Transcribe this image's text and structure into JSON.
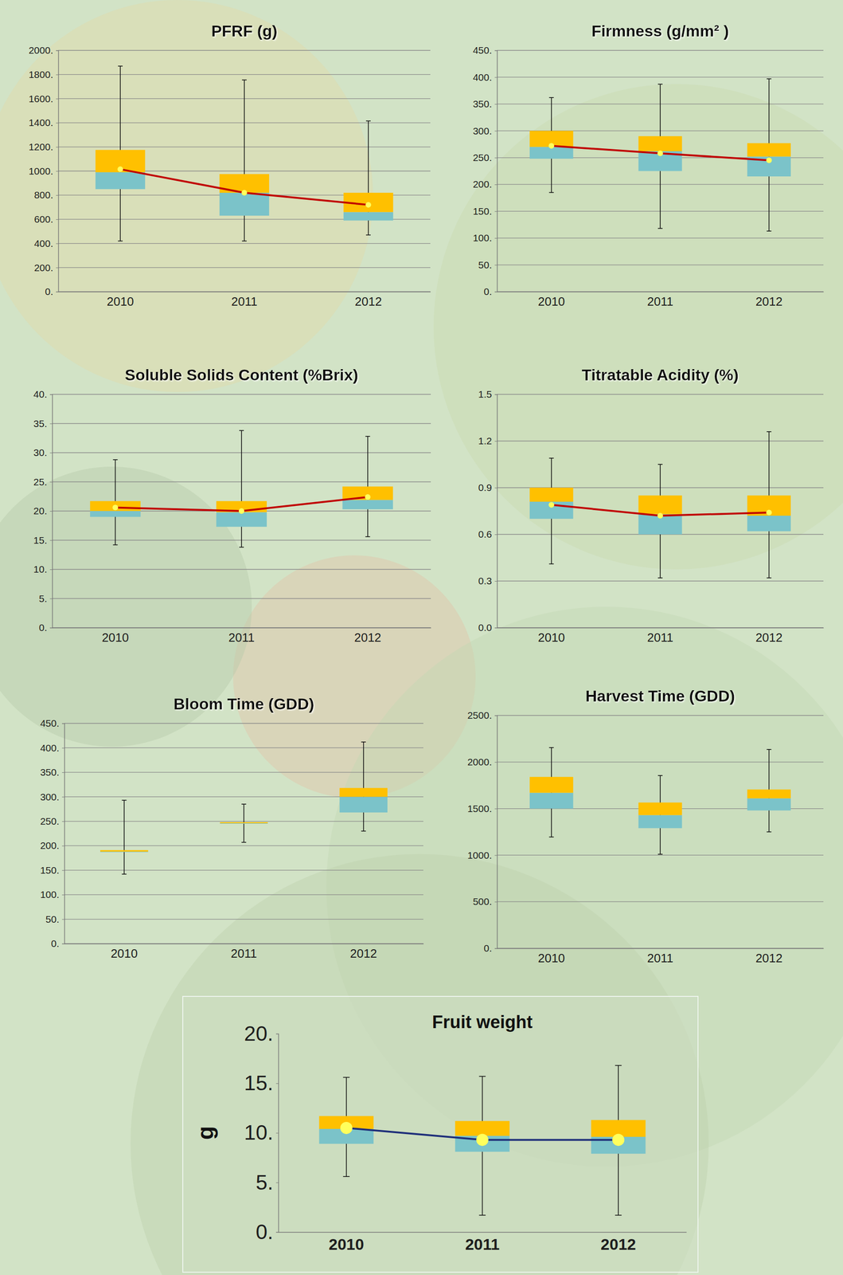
{
  "chart_data": [
    {
      "type": "box",
      "title": "PFRF (g)",
      "categories": [
        "2010",
        "2011",
        "2012"
      ],
      "min": [
        420,
        420,
        470
      ],
      "q1": [
        850,
        630,
        590
      ],
      "median": [
        990,
        820,
        660
      ],
      "q3": [
        1175,
        975,
        820
      ],
      "max": [
        1870,
        1755,
        1415
      ],
      "mean": [
        1015,
        820,
        720
      ],
      "color": "#c00000",
      "marker": "circle",
      "line_style": "solid",
      "ylim": [
        0,
        2000
      ],
      "yticks": [
        {
          "value": 0,
          "label": "0."
        },
        {
          "value": 200,
          "label": "200."
        },
        {
          "value": 400,
          "label": "400."
        },
        {
          "value": 600,
          "label": "600."
        },
        {
          "value": 800,
          "label": "800."
        },
        {
          "value": 1000,
          "label": "1000."
        },
        {
          "value": 1200,
          "label": "1200."
        },
        {
          "value": 1400,
          "label": "1400."
        },
        {
          "value": 1600,
          "label": "1600."
        },
        {
          "value": 1800,
          "label": "1800."
        },
        {
          "value": 2000,
          "label": "2000."
        }
      ],
      "grid": true
    },
    {
      "type": "box",
      "title": "Firmness (g/mm² )",
      "categories": [
        "2010",
        "2011",
        "2012"
      ],
      "min": [
        185,
        118,
        113
      ],
      "q1": [
        248,
        225,
        215
      ],
      "median": [
        270,
        262,
        252
      ],
      "q3": [
        300,
        290,
        277
      ],
      "max": [
        362,
        387,
        397
      ],
      "mean": [
        272,
        258,
        245
      ],
      "color": "#c00000",
      "marker": "circle",
      "line_style": "solid",
      "ylim": [
        0,
        450
      ],
      "yticks": [
        {
          "value": 0,
          "label": "0."
        },
        {
          "value": 50,
          "label": "50."
        },
        {
          "value": 100,
          "label": "100."
        },
        {
          "value": 150,
          "label": "150."
        },
        {
          "value": 200,
          "label": "200."
        },
        {
          "value": 250,
          "label": "250."
        },
        {
          "value": 300,
          "label": "300."
        },
        {
          "value": 350,
          "label": "350."
        },
        {
          "value": 400,
          "label": "400."
        },
        {
          "value": 450,
          "label": "450."
        }
      ],
      "grid": true
    },
    {
      "type": "box",
      "title": "Soluble Solids Content (%Brix)",
      "categories": [
        "2010",
        "2011",
        "2012"
      ],
      "min": [
        14.2,
        13.8,
        15.6
      ],
      "q1": [
        19.0,
        17.3,
        20.3
      ],
      "median": [
        20.0,
        19.8,
        21.9
      ],
      "q3": [
        21.7,
        21.7,
        24.2
      ],
      "max": [
        28.8,
        33.8,
        32.8
      ],
      "mean": [
        20.6,
        20.0,
        22.4
      ],
      "color": "#c00000",
      "marker": "circle",
      "line_style": "solid",
      "ylim": [
        0,
        40
      ],
      "yticks": [
        {
          "value": 0,
          "label": "0."
        },
        {
          "value": 5,
          "label": "5."
        },
        {
          "value": 10,
          "label": "10."
        },
        {
          "value": 15,
          "label": "15."
        },
        {
          "value": 20,
          "label": "20."
        },
        {
          "value": 25,
          "label": "25."
        },
        {
          "value": 30,
          "label": "30."
        },
        {
          "value": 35,
          "label": "35."
        },
        {
          "value": 40,
          "label": "40."
        }
      ],
      "grid": true
    },
    {
      "type": "box",
      "title": "Titratable Acidity (%)",
      "categories": [
        "2010",
        "2011",
        "2012"
      ],
      "min": [
        0.41,
        0.32,
        0.32
      ],
      "q1": [
        0.7,
        0.6,
        0.62
      ],
      "median": [
        0.81,
        0.73,
        0.72
      ],
      "q3": [
        0.9,
        0.85,
        0.85
      ],
      "max": [
        1.09,
        1.05,
        1.26
      ],
      "mean": [
        0.79,
        0.72,
        0.74
      ],
      "color": "#c00000",
      "marker": "circle",
      "line_style": "solid",
      "ylim": [
        0,
        1.5
      ],
      "yticks": [
        {
          "value": 0,
          "label": "0.0"
        },
        0.3,
        0.6,
        0.9,
        1.2,
        1.5
      ],
      "grid": true
    },
    {
      "type": "box",
      "title": "Bloom Time (GDD)",
      "categories": [
        "2010",
        "2011",
        "2012"
      ],
      "min": [
        142,
        207,
        230
      ],
      "q1": [
        187,
        245,
        268
      ],
      "median": [
        188,
        246,
        300
      ],
      "q3": [
        191,
        248,
        318
      ],
      "max": [
        293,
        285,
        412
      ],
      "ylim": [
        0,
        450
      ],
      "yticks": [
        {
          "value": 0,
          "label": "0."
        },
        {
          "value": 50,
          "label": "50."
        },
        {
          "value": 100,
          "label": "100."
        },
        {
          "value": 150,
          "label": "150."
        },
        {
          "value": 200,
          "label": "200."
        },
        {
          "value": 250,
          "label": "250."
        },
        {
          "value": 300,
          "label": "300."
        },
        {
          "value": 350,
          "label": "350."
        },
        {
          "value": 400,
          "label": "400."
        },
        {
          "value": 450,
          "label": "450."
        }
      ],
      "grid": true
    },
    {
      "type": "box",
      "title": "Harvest Time (GDD)",
      "categories": [
        "2010",
        "2011",
        "2012"
      ],
      "min": [
        1195,
        1010,
        1250
      ],
      "q1": [
        1500,
        1290,
        1480
      ],
      "median": [
        1670,
        1430,
        1610
      ],
      "q3": [
        1840,
        1565,
        1705
      ],
      "max": [
        2155,
        1855,
        2135
      ],
      "ylim": [
        0,
        2500
      ],
      "yticks": [
        {
          "value": 0,
          "label": "0."
        },
        {
          "value": 500,
          "label": "500."
        },
        {
          "value": 1000,
          "label": "1000."
        },
        {
          "value": 1500,
          "label": "1500."
        },
        {
          "value": 2000,
          "label": "2000."
        },
        {
          "value": 2500,
          "label": "2500."
        }
      ],
      "grid": true
    },
    {
      "type": "box",
      "title": "Fruit weight",
      "ylabel": "g",
      "categories": [
        "2010",
        "2011",
        "2012"
      ],
      "min": [
        5.6,
        1.7,
        1.7
      ],
      "q1": [
        8.9,
        8.1,
        7.9
      ],
      "median": [
        10.4,
        9.7,
        9.6
      ],
      "q3": [
        11.7,
        11.2,
        11.3
      ],
      "max": [
        15.6,
        15.7,
        16.8
      ],
      "mean": [
        10.5,
        9.3,
        9.3
      ],
      "color": "#1f2f7a",
      "marker": "circle",
      "line_style": "solid",
      "ylim": [
        0,
        20
      ],
      "yticks": [
        {
          "value": 0,
          "label": "0."
        },
        {
          "value": 5,
          "label": "5."
        },
        {
          "value": 10,
          "label": "10."
        },
        {
          "value": 15,
          "label": "15."
        },
        {
          "value": 20,
          "label": "20."
        }
      ],
      "grid": false
    }
  ]
}
